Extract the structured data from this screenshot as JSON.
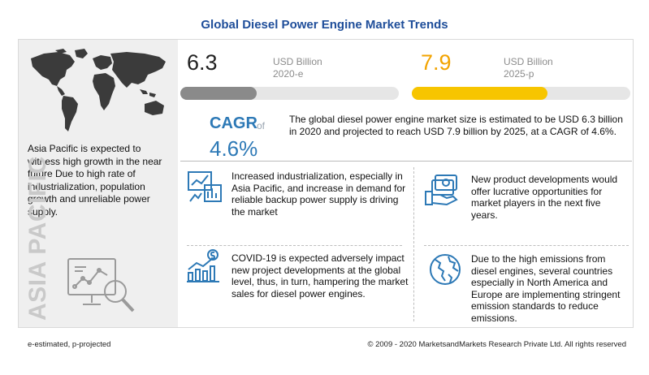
{
  "title": "Global Diesel Power Engine Market Trends",
  "left_panel": {
    "text": "Asia Pacific is expected to witness high growth in the near future Due to high rate of industrialization, population growth and unreliable power supply.",
    "vertical_label": "ASIA PACIFIC"
  },
  "stats": [
    {
      "value": "6.3",
      "unit": "USD Billion",
      "year": "2020-e",
      "bar_fill_fraction": 0.35,
      "bar_color": "#8a8a8a"
    },
    {
      "value": "7.9",
      "unit": "USD Billion",
      "year": "2025-p",
      "bar_fill_fraction": 0.62,
      "bar_color": "#f7c500"
    }
  ],
  "cagr": {
    "label": "CAGR",
    "of": "of",
    "value": "4.6%"
  },
  "summary": "The global diesel power engine market size is estimated to be USD 6.3 billion in 2020 and projected to reach USD 7.9 billion by 2025, at a CAGR of 4.6%.",
  "cards": [
    {
      "icon": "industrial-chart-icon",
      "text": "Increased industrialization, especially in Asia Pacific, and increase in demand for reliable backup power supply is driving the market"
    },
    {
      "icon": "money-hand-icon",
      "text": "New product developments would offer lucrative opportunities for market players in the next five years."
    },
    {
      "icon": "dollar-growth-icon",
      "text": "COVID-19 is expected adversely impact new project developments at the global level, thus, in turn, hampering the market sales for diesel power engines."
    },
    {
      "icon": "globe-icon",
      "text": "Due to the high emissions from diesel engines, several countries especially in North America and Europe are implementing stringent emission standards to reduce emissions."
    }
  ],
  "footer": {
    "note": "e-estimated, p-projected",
    "copyright": "© 2009 - 2020 MarketsandMarkets Research Private Ltd. All rights reserved"
  },
  "colors": {
    "title": "#1f4e9a",
    "cagr": "#2d79b6",
    "accent_orange": "#f2a300"
  }
}
